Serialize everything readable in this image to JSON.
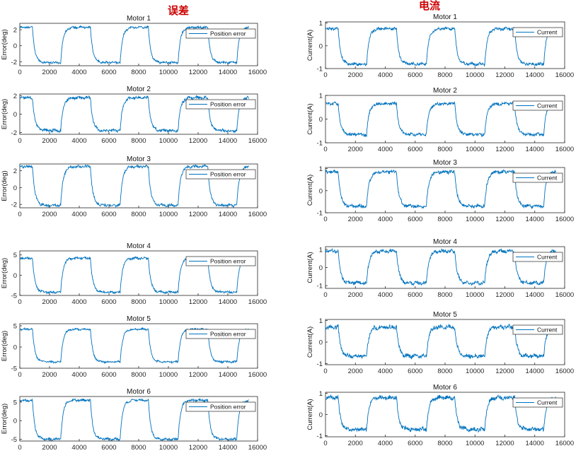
{
  "headers": {
    "left": "误差",
    "right": "电流"
  },
  "colors": {
    "line": "#0072BD",
    "axis": "#262626",
    "header": "#cc0000"
  },
  "chart_data": [
    {
      "type": "line",
      "title": "Motor 1",
      "xlabel": "",
      "ylabel": "Error(deg)",
      "xlim": [
        0,
        16000
      ],
      "ylim": [
        -2.5,
        2.8
      ],
      "xticks": [
        0,
        2000,
        4000,
        6000,
        8000,
        10000,
        12000,
        14000,
        16000
      ],
      "yticks": [
        -2,
        0,
        2
      ],
      "legend": "Position error",
      "legend_loc": "top-right",
      "high": 2.3,
      "low": -2.1,
      "noise": 0.12,
      "transitions": [
        850,
        2750,
        4750,
        6750,
        8650,
        10650,
        12650,
        14600
      ],
      "xmax": 15400
    },
    {
      "type": "line",
      "title": "Motor 2",
      "xlabel": "",
      "ylabel": "Error(deg)",
      "xlim": [
        0,
        16000
      ],
      "ylim": [
        -2.2,
        2.2
      ],
      "xticks": [
        0,
        2000,
        4000,
        6000,
        8000,
        10000,
        12000,
        14000,
        16000
      ],
      "yticks": [
        -2,
        0,
        2
      ],
      "legend": "Position error",
      "legend_loc": "top-right",
      "high": 1.8,
      "low": -1.8,
      "noise": 0.15,
      "transitions": [
        850,
        2750,
        4750,
        6750,
        8650,
        10650,
        12650,
        14600
      ],
      "xmax": 15400
    },
    {
      "type": "line",
      "title": "Motor 3",
      "xlabel": "",
      "ylabel": "Error(deg)",
      "xlim": [
        0,
        16000
      ],
      "ylim": [
        -2.4,
        2.8
      ],
      "xticks": [
        0,
        2000,
        4000,
        6000,
        8000,
        10000,
        12000,
        14000,
        16000
      ],
      "yticks": [
        -2,
        0,
        2
      ],
      "legend": "Position error",
      "legend_loc": "top-right",
      "high": 2.5,
      "low": -2.1,
      "noise": 0.15,
      "transitions": [
        850,
        2750,
        4750,
        6750,
        8650,
        10650,
        12650,
        14600
      ],
      "xmax": 15400
    },
    {
      "type": "line",
      "title": "Motor 4",
      "xlabel": "",
      "ylabel": "Error(deg)",
      "xlim": [
        0,
        16000
      ],
      "ylim": [
        -5,
        6
      ],
      "xticks": [
        0,
        2000,
        4000,
        6000,
        8000,
        10000,
        12000,
        14000,
        16000
      ],
      "yticks": [
        -5,
        0,
        5
      ],
      "legend": "Position error",
      "legend_loc": "top-right",
      "high": 4.2,
      "low": -4.2,
      "noise": 0.25,
      "transitions": [
        850,
        2750,
        4750,
        6750,
        8650,
        10650,
        12650,
        14600
      ],
      "xmax": 15400
    },
    {
      "type": "line",
      "title": "Motor 5",
      "xlabel": "",
      "ylabel": "Error(deg)",
      "xlim": [
        0,
        16000
      ],
      "ylim": [
        -5,
        5.5
      ],
      "xticks": [
        0,
        2000,
        4000,
        6000,
        8000,
        10000,
        12000,
        14000,
        16000
      ],
      "yticks": [
        -5,
        0,
        5
      ],
      "legend": "Position error",
      "legend_loc": "top-right",
      "high": 4.2,
      "low": -3.5,
      "noise": 0.2,
      "transitions": [
        850,
        2750,
        4750,
        6750,
        8650,
        10650,
        12650,
        14600
      ],
      "xmax": 15400
    },
    {
      "type": "line",
      "title": "Motor 6",
      "xlabel": "",
      "ylabel": "Error(deg)",
      "xlim": [
        0,
        16000
      ],
      "ylim": [
        -5.5,
        6.5
      ],
      "xticks": [
        0,
        2000,
        4000,
        6000,
        8000,
        10000,
        12000,
        14000,
        16000
      ],
      "yticks": [
        -5,
        0,
        5
      ],
      "legend": "Position error",
      "legend_loc": "top-right",
      "high": 5.5,
      "low": -5,
      "noise": 0.3,
      "transitions": [
        850,
        2750,
        4750,
        6750,
        8650,
        10650,
        12650,
        14600
      ],
      "xmax": 15400
    },
    {
      "type": "line",
      "title": "Motor 1",
      "xlabel": "",
      "ylabel": "Current(A)",
      "xlim": [
        0,
        16000
      ],
      "ylim": [
        -1,
        1.05
      ],
      "xticks": [
        0,
        2000,
        4000,
        6000,
        8000,
        10000,
        12000,
        14000,
        16000
      ],
      "yticks": [
        -1,
        0,
        1
      ],
      "legend": "Current",
      "legend_loc": "top-right",
      "high": 0.75,
      "low": -0.8,
      "noise": 0.06,
      "transitions": [
        850,
        2750,
        4750,
        6750,
        8650,
        10650,
        12650,
        14600
      ],
      "xmax": 15400
    },
    {
      "type": "line",
      "title": "Motor 2",
      "xlabel": "",
      "ylabel": "Current(A)",
      "xlim": [
        0,
        16000
      ],
      "ylim": [
        -1,
        1
      ],
      "xticks": [
        0,
        2000,
        4000,
        6000,
        8000,
        10000,
        12000,
        14000,
        16000
      ],
      "yticks": [
        -1,
        0,
        1
      ],
      "legend": "Current",
      "legend_loc": "top-right",
      "high": 0.65,
      "low": -0.65,
      "noise": 0.06,
      "transitions": [
        850,
        2750,
        4750,
        6750,
        8650,
        10650,
        12650,
        14600
      ],
      "xmax": 15400
    },
    {
      "type": "line",
      "title": "Motor 3",
      "xlabel": "",
      "ylabel": "Current(A)",
      "xlim": [
        0,
        16000
      ],
      "ylim": [
        -1,
        1.05
      ],
      "xticks": [
        0,
        2000,
        4000,
        6000,
        8000,
        10000,
        12000,
        14000,
        16000
      ],
      "yticks": [
        -1,
        0,
        1
      ],
      "legend": "Current",
      "legend_loc": "top-right",
      "high": 0.85,
      "low": -0.7,
      "noise": 0.07,
      "transitions": [
        850,
        2750,
        4750,
        6750,
        8650,
        10650,
        12650,
        14600
      ],
      "xmax": 15400
    },
    {
      "type": "line",
      "title": "Motor 4",
      "xlabel": "",
      "ylabel": "Current(A)",
      "xlim": [
        0,
        16000
      ],
      "ylim": [
        -1.15,
        1.15
      ],
      "xticks": [
        0,
        2000,
        4000,
        6000,
        8000,
        10000,
        12000,
        14000,
        16000
      ],
      "yticks": [
        -1,
        0,
        1
      ],
      "legend": "Current",
      "legend_loc": "top-right",
      "high": 0.9,
      "low": -0.85,
      "noise": 0.09,
      "transitions": [
        850,
        2750,
        4750,
        6750,
        8650,
        10650,
        12650,
        14600
      ],
      "xmax": 15400
    },
    {
      "type": "line",
      "title": "Motor 5",
      "xlabel": "",
      "ylabel": "Current(A)",
      "xlim": [
        0,
        16000
      ],
      "ylim": [
        -1.05,
        1.05
      ],
      "xticks": [
        0,
        2000,
        4000,
        6000,
        8000,
        10000,
        12000,
        14000,
        16000
      ],
      "yticks": [
        -1,
        0,
        1
      ],
      "legend": "Current",
      "legend_loc": "top-right",
      "high": 0.7,
      "low": -0.65,
      "noise": 0.09,
      "transitions": [
        850,
        2750,
        4750,
        6750,
        8650,
        10650,
        12650,
        14600
      ],
      "xmax": 15400
    },
    {
      "type": "line",
      "title": "Motor 6",
      "xlabel": "",
      "ylabel": "Current(A)",
      "xlim": [
        0,
        16000
      ],
      "ylim": [
        -1.05,
        1.05
      ],
      "xticks": [
        0,
        2000,
        4000,
        6000,
        8000,
        10000,
        12000,
        14000,
        16000
      ],
      "yticks": [
        -1,
        0,
        1
      ],
      "legend": "Current",
      "legend_loc": "top-right",
      "high": 0.8,
      "low": -0.7,
      "noise": 0.09,
      "transitions": [
        850,
        2750,
        4750,
        6750,
        8650,
        10650,
        12650,
        14600
      ],
      "xmax": 15400
    }
  ]
}
